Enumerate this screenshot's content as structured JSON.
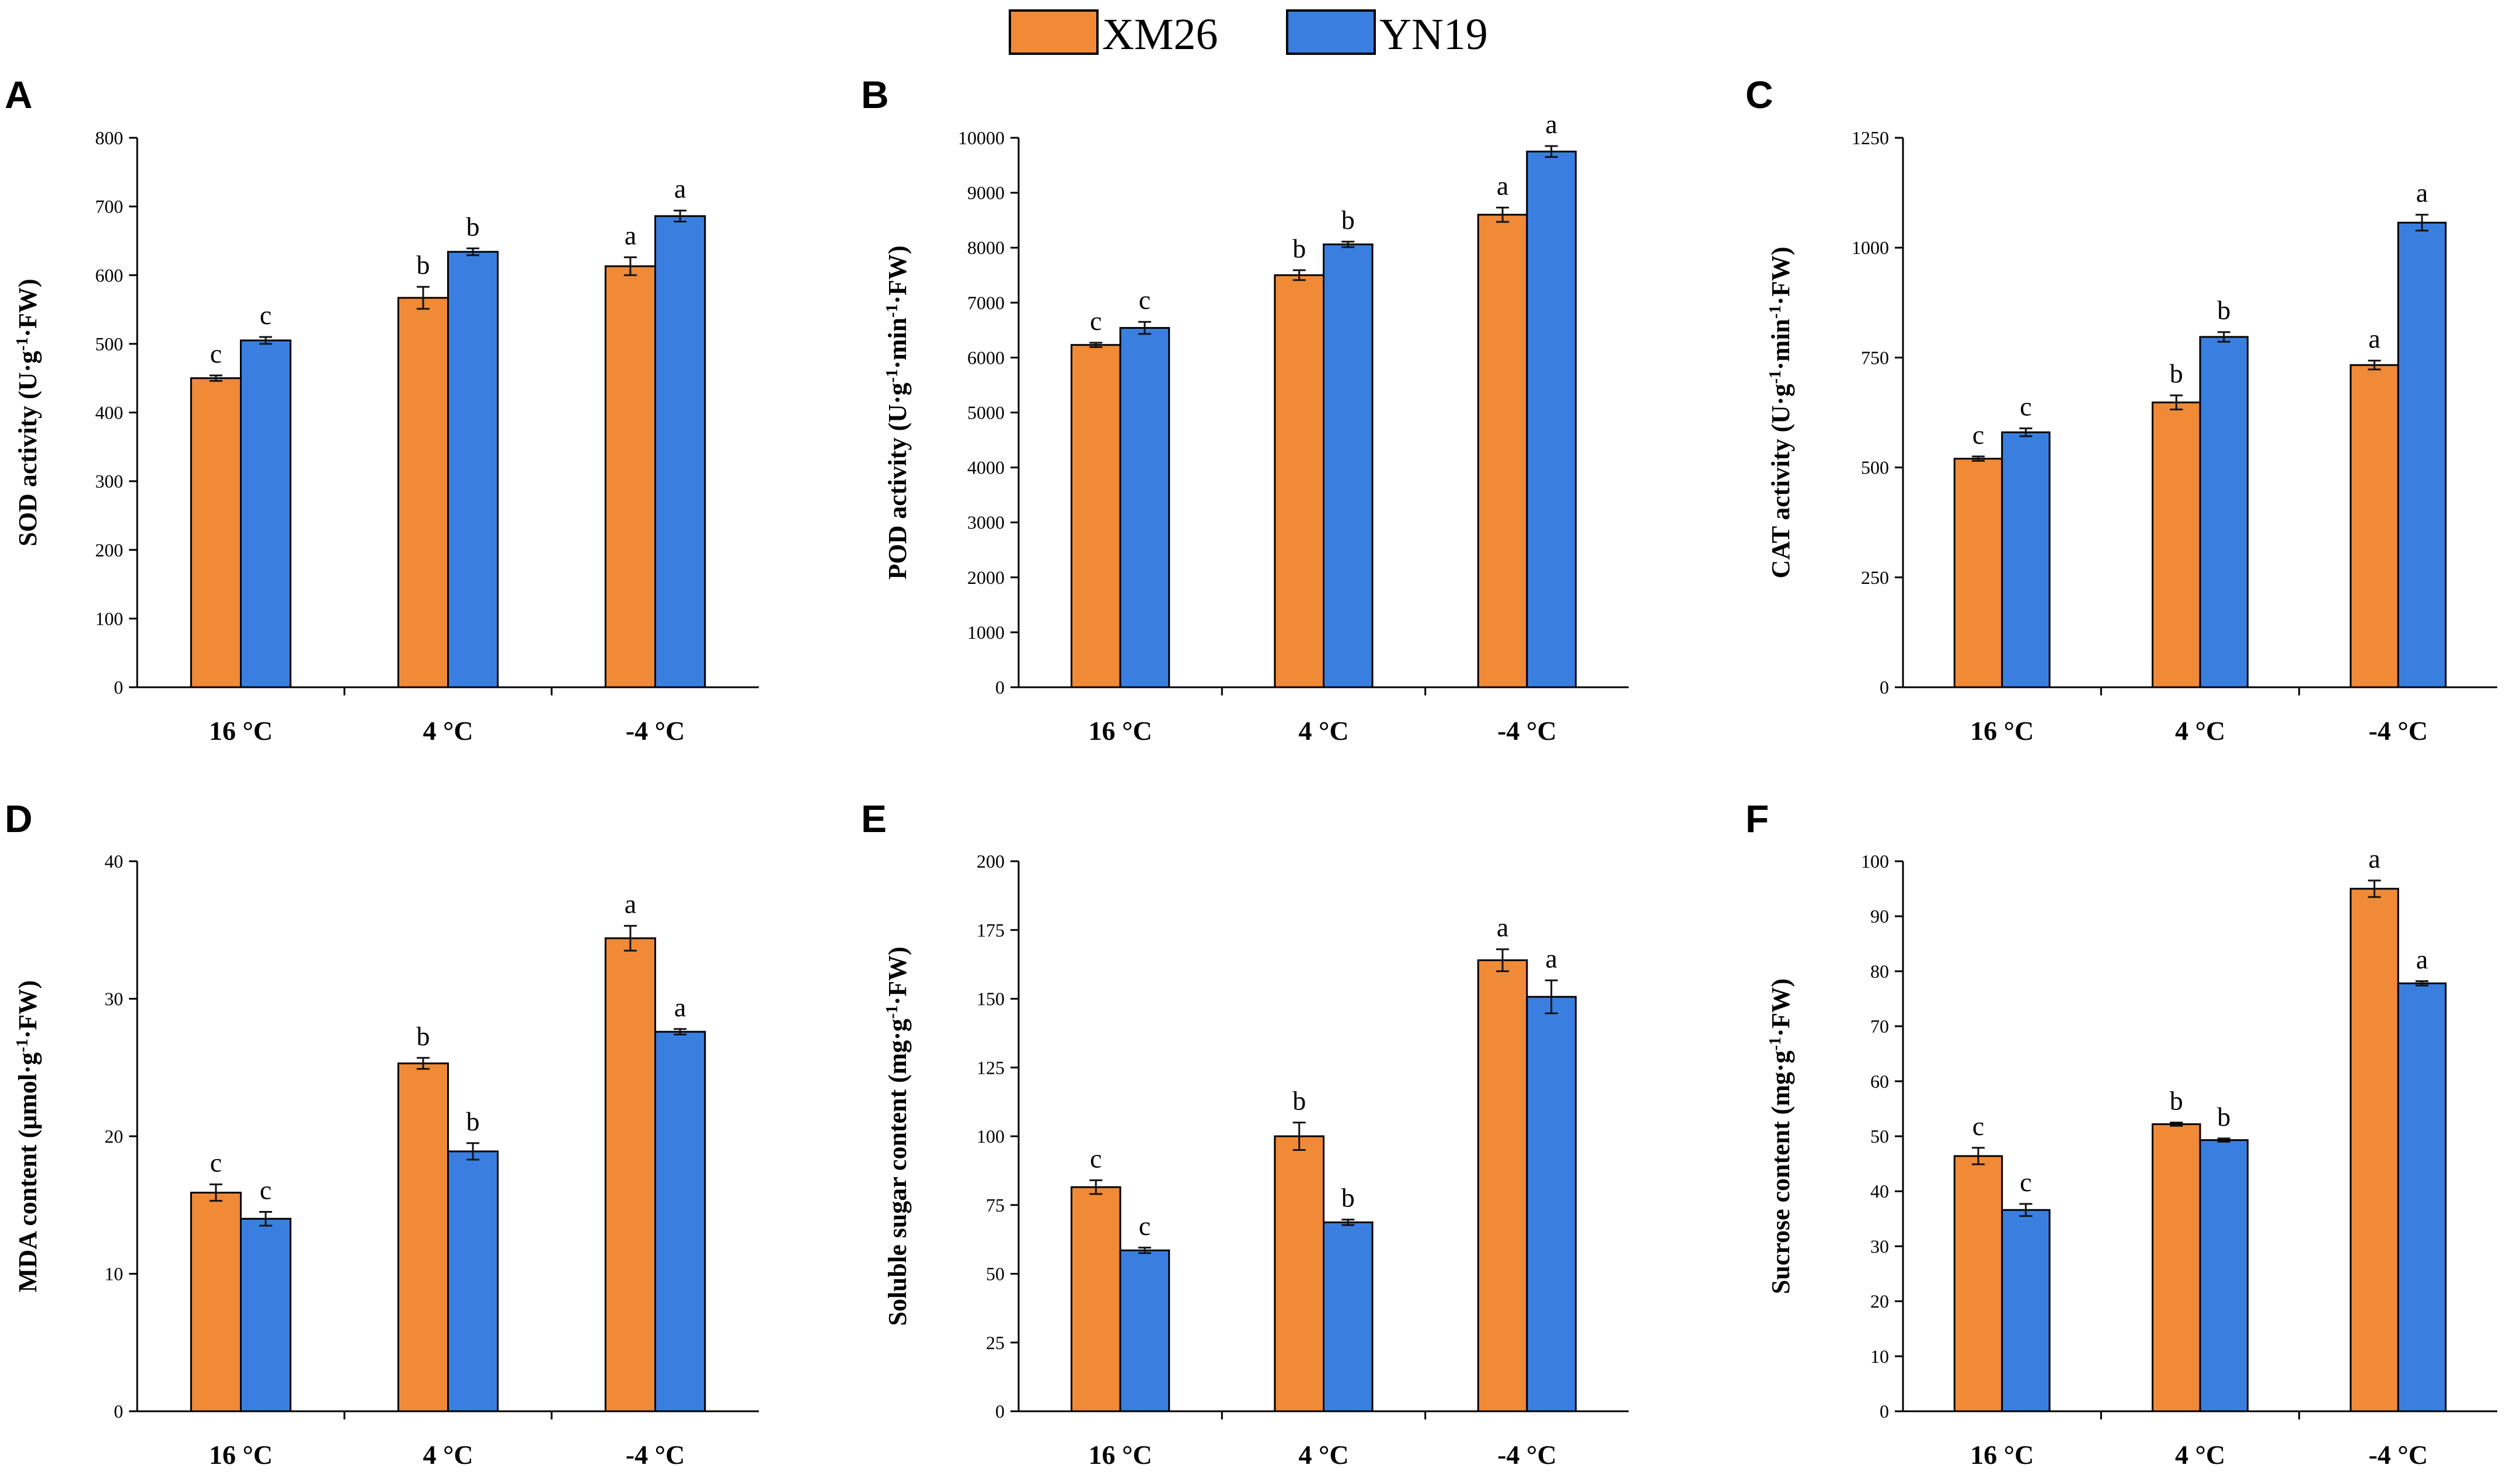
{
  "colors": {
    "XM26": "#F08A37",
    "YN19": "#3A7FE0",
    "axis": "#000000",
    "errorbar": "#111111"
  },
  "legend": {
    "items": [
      {
        "name": "XM26",
        "color": "#F08A37"
      },
      {
        "name": "YN19",
        "color": "#3A7FE0"
      }
    ]
  },
  "chart_data": [
    {
      "panel": "A",
      "type": "bar",
      "title": "",
      "categories": [
        "16 °C",
        "4 °C",
        "-4 °C"
      ],
      "ylabel_main": "SOD activity (U·g",
      "ylabel_sup": "-1",
      "ylabel_tail": "·FW)",
      "ylim": [
        0,
        800
      ],
      "yticks": [
        0,
        100,
        200,
        300,
        400,
        500,
        600,
        700,
        800
      ],
      "ytick_labels": [
        "0",
        "100",
        "200",
        "300",
        "400",
        "500",
        "600",
        "700",
        "800"
      ],
      "series": [
        {
          "name": "XM26",
          "values": [
            450,
            567,
            613
          ],
          "errors": [
            4,
            16,
            13
          ],
          "letters": [
            "c",
            "b",
            "a"
          ]
        },
        {
          "name": "YN19",
          "values": [
            505,
            634,
            686
          ],
          "errors": [
            5,
            5,
            8
          ],
          "letters": [
            "c",
            "b",
            "a"
          ]
        }
      ]
    },
    {
      "panel": "B",
      "type": "bar",
      "title": "",
      "categories": [
        "16 °C",
        "4 °C",
        "-4 °C"
      ],
      "ylabel_main": "POD activity (U·g",
      "ylabel_sup": "-1",
      "ylabel_mid": "·min",
      "ylabel_sup2": "-1",
      "ylabel_tail": "·FW)",
      "ylim": [
        0,
        10000
      ],
      "yticks": [
        0,
        1000,
        2000,
        3000,
        4000,
        5000,
        6000,
        7000,
        8000,
        9000,
        10000
      ],
      "ytick_labels": [
        "0",
        "1000",
        "2000",
        "3000",
        "4000",
        "5000",
        "6000",
        "7000",
        "8000",
        "9000",
        "10000"
      ],
      "series": [
        {
          "name": "XM26",
          "values": [
            6230,
            7500,
            8600
          ],
          "errors": [
            40,
            90,
            130
          ],
          "letters": [
            "c",
            "b",
            "a"
          ]
        },
        {
          "name": "YN19",
          "values": [
            6540,
            8060,
            9750
          ],
          "errors": [
            110,
            50,
            100
          ],
          "letters": [
            "c",
            "b",
            "a"
          ]
        }
      ]
    },
    {
      "panel": "C",
      "type": "bar",
      "title": "",
      "categories": [
        "16 °C",
        "4 °C",
        "-4 °C"
      ],
      "ylabel_main": "CAT activity (U·g",
      "ylabel_sup": "-1",
      "ylabel_mid": "·min",
      "ylabel_sup2": "-1",
      "ylabel_tail": "·FW)",
      "ylim": [
        0,
        1250
      ],
      "yticks": [
        0,
        250,
        500,
        750,
        1000,
        1250
      ],
      "ytick_labels": [
        "0",
        "250",
        "500",
        "750",
        "1000",
        "1250"
      ],
      "series": [
        {
          "name": "XM26",
          "values": [
            520,
            648,
            733
          ],
          "errors": [
            5,
            16,
            10
          ],
          "letters": [
            "c",
            "b",
            "a"
          ]
        },
        {
          "name": "YN19",
          "values": [
            580,
            797,
            1057
          ],
          "errors": [
            9,
            11,
            18
          ],
          "letters": [
            "c",
            "b",
            "a"
          ]
        }
      ]
    },
    {
      "panel": "D",
      "type": "bar",
      "title": "",
      "categories": [
        "16 °C",
        "4 °C",
        "-4 °C"
      ],
      "ylabel_main": "MDA content (μmol·g",
      "ylabel_sup": "-1",
      "ylabel_tail": "·FW)",
      "ylim": [
        0,
        40
      ],
      "yticks": [
        0,
        10,
        20,
        30,
        40
      ],
      "ytick_labels": [
        "0",
        "10",
        "20",
        "30",
        "40"
      ],
      "series": [
        {
          "name": "XM26",
          "values": [
            15.9,
            25.3,
            34.4
          ],
          "errors": [
            0.6,
            0.4,
            0.9
          ],
          "letters": [
            "c",
            "b",
            "a"
          ]
        },
        {
          "name": "YN19",
          "values": [
            14.0,
            18.9,
            27.6
          ],
          "errors": [
            0.5,
            0.6,
            0.2
          ],
          "letters": [
            "c",
            "b",
            "a"
          ]
        }
      ]
    },
    {
      "panel": "E",
      "type": "bar",
      "title": "",
      "categories": [
        "16 °C",
        "4 °C",
        "-4 °C"
      ],
      "ylabel_main": "Soluble sugar content (mg·g",
      "ylabel_sup": "-1",
      "ylabel_tail": "·FW)",
      "ylim": [
        0,
        200
      ],
      "yticks": [
        0,
        25,
        50,
        75,
        100,
        125,
        150,
        175,
        200
      ],
      "ytick_labels": [
        "0",
        "25",
        "50",
        "75",
        "100",
        "125",
        "150",
        "175",
        "200"
      ],
      "series": [
        {
          "name": "XM26",
          "values": [
            81.5,
            100,
            164
          ],
          "errors": [
            2.5,
            5,
            4
          ],
          "letters": [
            "c",
            "b",
            "a"
          ]
        },
        {
          "name": "YN19",
          "values": [
            58.5,
            68.7,
            150.7
          ],
          "errors": [
            1,
            1,
            6
          ],
          "letters": [
            "c",
            "b",
            "a"
          ]
        }
      ]
    },
    {
      "panel": "F",
      "type": "bar",
      "title": "",
      "categories": [
        "16 °C",
        "4 °C",
        "-4 °C"
      ],
      "ylabel_main": "Sucrose content (mg·g",
      "ylabel_sup": "-1",
      "ylabel_tail": "·FW)",
      "ylim": [
        0,
        100
      ],
      "yticks": [
        0,
        10,
        20,
        30,
        40,
        50,
        60,
        70,
        80,
        90,
        100
      ],
      "ytick_labels": [
        "0",
        "10",
        "20",
        "30",
        "40",
        "50",
        "60",
        "70",
        "80",
        "90",
        "100"
      ],
      "series": [
        {
          "name": "XM26",
          "values": [
            46.4,
            52.2,
            95
          ],
          "errors": [
            1.5,
            0.3,
            1.5
          ],
          "letters": [
            "c",
            "b",
            "a"
          ]
        },
        {
          "name": "YN19",
          "values": [
            36.6,
            49.3,
            77.8
          ],
          "errors": [
            1.1,
            0.3,
            0.4
          ],
          "letters": [
            "c",
            "b",
            "a"
          ]
        }
      ]
    }
  ]
}
